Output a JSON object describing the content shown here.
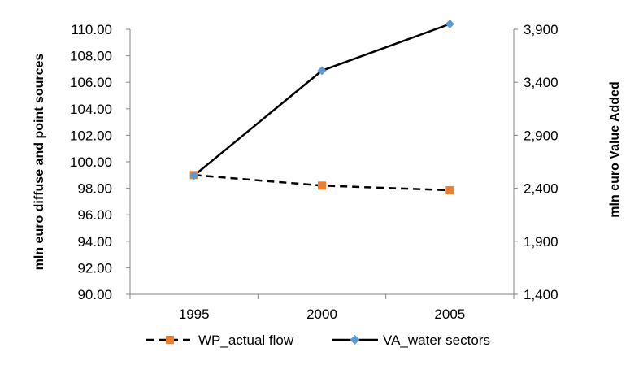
{
  "chart_data": {
    "type": "line",
    "categories": [
      "1995",
      "2000",
      "2005"
    ],
    "y_left": {
      "label": "mln euro diffuse and point sources",
      "ylim": [
        90,
        110
      ],
      "ticks": [
        "90.00",
        "92.00",
        "94.00",
        "96.00",
        "98.00",
        "100.00",
        "102.00",
        "104.00",
        "106.00",
        "108.00",
        "110.00"
      ]
    },
    "y_right": {
      "label": "mln euro Value Added",
      "ylim": [
        1400,
        3900
      ],
      "ticks": [
        "1,400",
        "1,900",
        "2,400",
        "2,900",
        "3,400",
        "3,900"
      ]
    },
    "series": [
      {
        "name": "WP_actual flow",
        "axis": "left",
        "values": [
          99.0,
          98.2,
          97.85
        ],
        "color": "#ed7d31",
        "line_color": "#000000",
        "dashed": true,
        "marker": "square"
      },
      {
        "name": "VA_water sectors",
        "axis": "right",
        "values": [
          2520,
          3510,
          3950
        ],
        "color": "#5b9bd5",
        "line_color": "#000000",
        "dashed": false,
        "marker": "diamond"
      }
    ],
    "legend": "bottom",
    "grid": false
  }
}
